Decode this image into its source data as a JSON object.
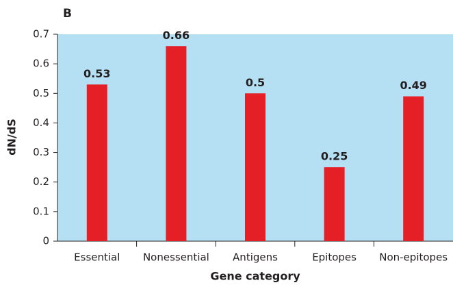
{
  "chart_data": {
    "type": "bar",
    "panel_label": "B",
    "categories": [
      "Essential",
      "Nonessential",
      "Antigens",
      "Epitopes",
      "Non-epitopes"
    ],
    "values": [
      0.53,
      0.66,
      0.5,
      0.25,
      0.49
    ],
    "color": "#e41f26",
    "background": "#b5e0f4",
    "ylabel": "dN/dS",
    "xlabel": "Gene category",
    "ylim": [
      0,
      0.7
    ],
    "yticks": [
      0,
      0.1,
      0.2,
      0.3,
      0.4,
      0.5,
      0.6,
      0.7
    ]
  }
}
